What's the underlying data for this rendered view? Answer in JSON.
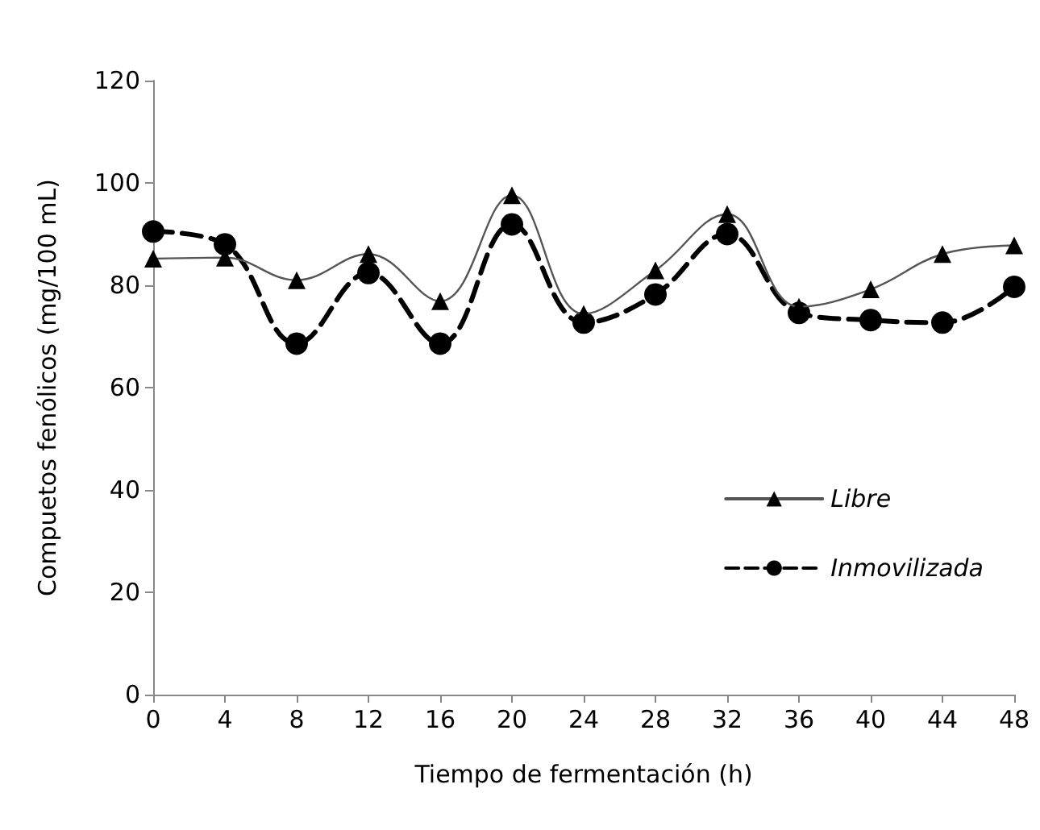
{
  "chart_data": {
    "type": "line",
    "xlabel": "Tiempo de fermentación (h)",
    "ylabel": "Compuetos fenólicos (mg/100 mL)",
    "x": [
      0,
      4,
      8,
      12,
      16,
      20,
      24,
      28,
      32,
      36,
      40,
      44,
      48
    ],
    "series": [
      {
        "name": "Libre",
        "color": "#000000",
        "marker": "triangle",
        "line_style": "solid",
        "values": [
          85.2,
          85.4,
          81,
          86.1,
          76.9,
          97.6,
          74.4,
          82.9,
          93.9,
          75.8,
          79.2,
          86.1,
          87.8
        ]
      },
      {
        "name": "Inmovilizada",
        "color": "#000000",
        "marker": "circle",
        "line_style": "dashed",
        "values": [
          90.5,
          88,
          68.6,
          82.4,
          68.6,
          91.9,
          72.7,
          78.2,
          90,
          74.6,
          73.2,
          72.7,
          79.7
        ]
      }
    ],
    "xlim": [
      0,
      48
    ],
    "xticks": [
      0,
      4,
      8,
      12,
      16,
      20,
      24,
      28,
      32,
      36,
      40,
      44,
      48
    ],
    "ylim": [
      0,
      120
    ],
    "yticks": [
      0,
      20,
      40,
      60,
      80,
      100,
      120
    ],
    "grid": false,
    "legend": "bottom right"
  }
}
